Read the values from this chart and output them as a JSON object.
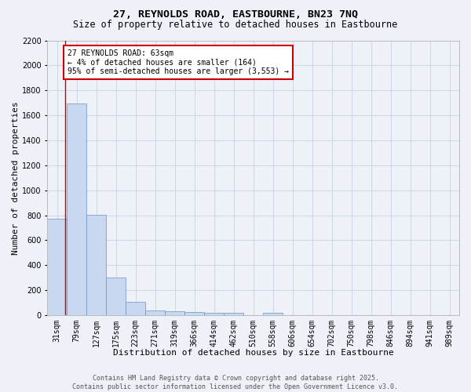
{
  "title": "27, REYNOLDS ROAD, EASTBOURNE, BN23 7NQ",
  "subtitle": "Size of property relative to detached houses in Eastbourne",
  "xlabel": "Distribution of detached houses by size in Eastbourne",
  "ylabel": "Number of detached properties",
  "categories": [
    "31sqm",
    "79sqm",
    "127sqm",
    "175sqm",
    "223sqm",
    "271sqm",
    "319sqm",
    "366sqm",
    "414sqm",
    "462sqm",
    "510sqm",
    "558sqm",
    "606sqm",
    "654sqm",
    "702sqm",
    "750sqm",
    "798sqm",
    "846sqm",
    "894sqm",
    "941sqm",
    "989sqm"
  ],
  "values": [
    775,
    1695,
    805,
    300,
    110,
    40,
    35,
    28,
    20,
    20,
    0,
    22,
    0,
    0,
    0,
    0,
    0,
    0,
    0,
    0,
    0
  ],
  "ylim": [
    0,
    2200
  ],
  "yticks": [
    0,
    200,
    400,
    600,
    800,
    1000,
    1200,
    1400,
    1600,
    1800,
    2000,
    2200
  ],
  "bar_color": "#c8d8f0",
  "bar_edge_color": "#7090c0",
  "grid_color": "#d0d8e8",
  "background_color": "#eef2f8",
  "red_line_x": 0.42,
  "annotation_text": "27 REYNOLDS ROAD: 63sqm\n← 4% of detached houses are smaller (164)\n95% of semi-detached houses are larger (3,553) →",
  "annotation_box_color": "#ffffff",
  "annotation_border_color": "#cc0000",
  "footer_text": "Contains HM Land Registry data © Crown copyright and database right 2025.\nContains public sector information licensed under the Open Government Licence v3.0.",
  "title_fontsize": 9.5,
  "subtitle_fontsize": 8.5,
  "tick_fontsize": 7,
  "xlabel_fontsize": 8,
  "ylabel_fontsize": 8,
  "annotation_fontsize": 7,
  "footer_fontsize": 6
}
